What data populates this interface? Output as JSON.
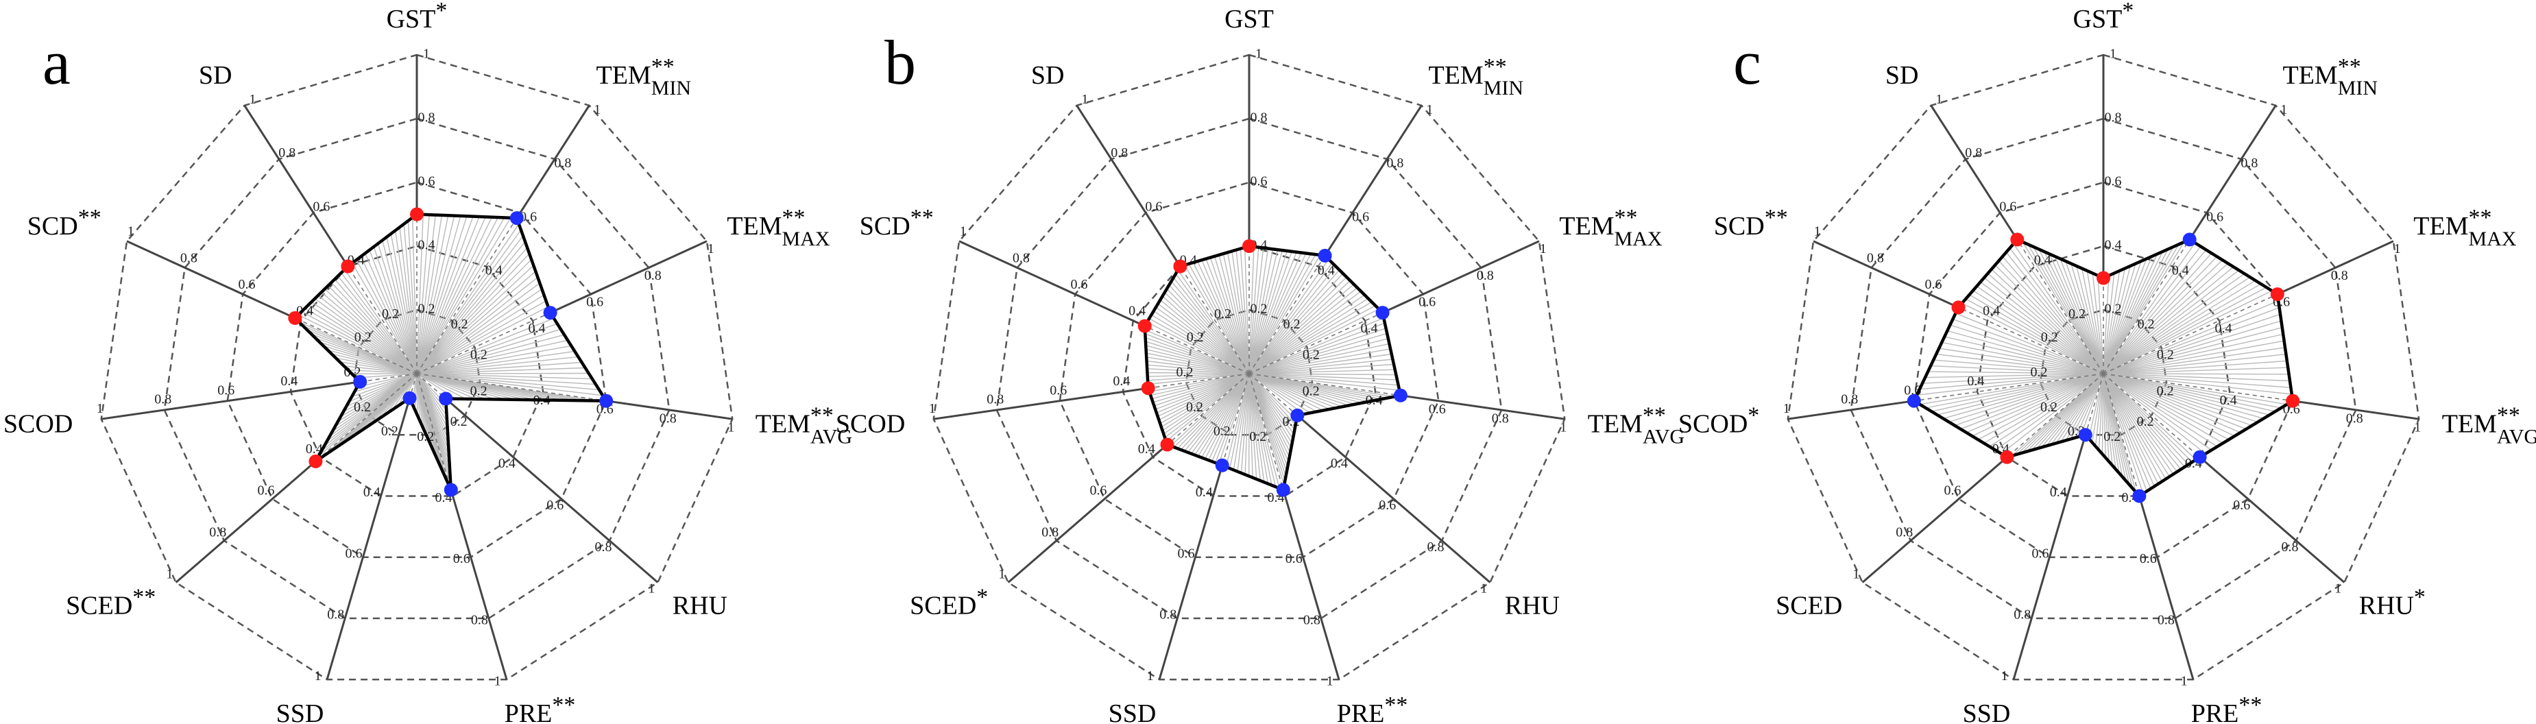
{
  "colors": {
    "positive": "#ff1a1a",
    "negative": "#1f2fff",
    "line": "#000000",
    "hatch": "#b9b9b9",
    "ring": "#555555"
  },
  "chart_data": [
    {
      "type": "radar",
      "panel": "a",
      "axes": [
        {
          "name": "GST",
          "sub": "",
          "sig": "*"
        },
        {
          "name": "TEM",
          "sub": "MIN",
          "sig": "**"
        },
        {
          "name": "TEM",
          "sub": "MAX",
          "sig": "**"
        },
        {
          "name": "TEM",
          "sub": "AVG",
          "sig": "**"
        },
        {
          "name": "RHU",
          "sub": "",
          "sig": ""
        },
        {
          "name": "PRE",
          "sub": "",
          "sig": "**"
        },
        {
          "name": "SSD",
          "sub": "",
          "sig": ""
        },
        {
          "name": "SCED",
          "sub": "",
          "sig": "**"
        },
        {
          "name": "SCOD",
          "sub": "",
          "sig": ""
        },
        {
          "name": "SCD",
          "sub": "",
          "sig": "**"
        },
        {
          "name": "SD",
          "sub": "",
          "sig": ""
        }
      ],
      "rlim": [
        0,
        1
      ],
      "ticks": [
        0.2,
        0.4,
        0.6,
        0.8,
        1
      ],
      "tick_labels": [
        "0.2",
        "0.4",
        "0.6",
        "0.8",
        "1"
      ],
      "values": [
        0.5,
        0.58,
        0.46,
        0.6,
        0.12,
        0.38,
        0.08,
        0.42,
        0.18,
        0.42,
        0.4
      ],
      "signs": [
        "pos",
        "neg",
        "neg",
        "neg",
        "neg",
        "neg",
        "neg",
        "pos",
        "neg",
        "pos",
        "pos"
      ]
    },
    {
      "type": "radar",
      "panel": "b",
      "axes": [
        {
          "name": "GST",
          "sub": "",
          "sig": ""
        },
        {
          "name": "TEM",
          "sub": "MIN",
          "sig": "**"
        },
        {
          "name": "TEM",
          "sub": "MAX",
          "sig": "**"
        },
        {
          "name": "TEM",
          "sub": "AVG",
          "sig": "**"
        },
        {
          "name": "RHU",
          "sub": "",
          "sig": ""
        },
        {
          "name": "PRE",
          "sub": "",
          "sig": "**"
        },
        {
          "name": "SSD",
          "sub": "",
          "sig": ""
        },
        {
          "name": "SCED",
          "sub": "",
          "sig": "*"
        },
        {
          "name": "SCOD",
          "sub": "",
          "sig": ""
        },
        {
          "name": "SCD",
          "sub": "",
          "sig": "**"
        },
        {
          "name": "SD",
          "sub": "",
          "sig": ""
        }
      ],
      "rlim": [
        0,
        1
      ],
      "ticks": [
        0.2,
        0.4,
        0.6,
        0.8,
        1
      ],
      "tick_labels": [
        "0.2",
        "0.4",
        "0.6",
        "0.8",
        "1"
      ],
      "values": [
        0.4,
        0.44,
        0.46,
        0.48,
        0.2,
        0.38,
        0.3,
        0.34,
        0.32,
        0.36,
        0.4
      ],
      "signs": [
        "pos",
        "neg",
        "neg",
        "neg",
        "neg",
        "neg",
        "neg",
        "pos",
        "pos",
        "pos",
        "pos"
      ]
    },
    {
      "type": "radar",
      "panel": "c",
      "axes": [
        {
          "name": "GST",
          "sub": "",
          "sig": "*"
        },
        {
          "name": "TEM",
          "sub": "MIN",
          "sig": "**"
        },
        {
          "name": "TEM",
          "sub": "MAX",
          "sig": "**"
        },
        {
          "name": "TEM",
          "sub": "AVG",
          "sig": "**"
        },
        {
          "name": "RHU",
          "sub": "",
          "sig": "*"
        },
        {
          "name": "PRE",
          "sub": "",
          "sig": "**"
        },
        {
          "name": "SSD",
          "sub": "",
          "sig": ""
        },
        {
          "name": "SCED",
          "sub": "",
          "sig": ""
        },
        {
          "name": "SCOD",
          "sub": "",
          "sig": "*"
        },
        {
          "name": "SCD",
          "sub": "",
          "sig": "**"
        },
        {
          "name": "SD",
          "sub": "",
          "sig": ""
        }
      ],
      "rlim": [
        0,
        1
      ],
      "ticks": [
        0.2,
        0.4,
        0.6,
        0.8,
        1
      ],
      "tick_labels": [
        "0.2",
        "0.4",
        "0.6",
        "0.8",
        "1"
      ],
      "values": [
        0.3,
        0.5,
        0.6,
        0.6,
        0.4,
        0.4,
        0.2,
        0.4,
        0.6,
        0.5,
        0.5
      ],
      "signs": [
        "pos",
        "neg",
        "pos",
        "pos",
        "neg",
        "neg",
        "neg",
        "pos",
        "neg",
        "pos",
        "pos"
      ]
    }
  ]
}
